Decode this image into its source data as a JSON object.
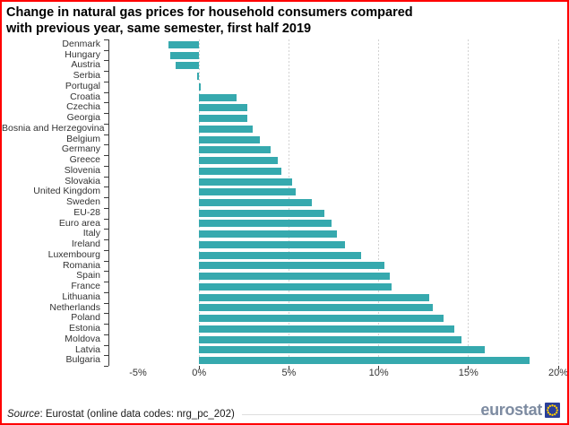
{
  "title_lines": [
    "Change in natural gas prices for household consumers compared",
    "with previous year, same semester, first half 2019"
  ],
  "chart_data": {
    "type": "bar",
    "orientation": "horizontal",
    "unit": "percent",
    "categories": [
      "Denmark",
      "Hungary",
      "Austria",
      "Serbia",
      "Portugal",
      "Croatia",
      "Czechia",
      "Georgia",
      "Bosnia and Herzegovina",
      "Belgium",
      "Germany",
      "Greece",
      "Slovenia",
      "Slovakia",
      "United Kingdom",
      "Sweden",
      "EU-28",
      "Euro area",
      "Italy",
      "Ireland",
      "Luxembourg",
      "Romania",
      "Spain",
      "France",
      "Lithuania",
      "Netherlands",
      "Poland",
      "Estonia",
      "Moldova",
      "Latvia",
      "Bulgaria"
    ],
    "values": [
      -1.7,
      -1.6,
      -1.3,
      -0.1,
      0.1,
      2.1,
      2.7,
      2.7,
      3.0,
      3.4,
      4.0,
      4.4,
      4.6,
      5.2,
      5.4,
      6.3,
      7.0,
      7.4,
      7.7,
      8.1,
      9.0,
      10.3,
      10.6,
      10.7,
      12.8,
      13.0,
      13.6,
      14.2,
      14.6,
      15.9,
      18.4
    ],
    "xlim": [
      -5,
      20
    ],
    "xticks": [
      {
        "label": "-5%",
        "value": -5
      },
      {
        "label": "0%",
        "value": 0
      },
      {
        "label": "5%",
        "value": 5
      },
      {
        "label": "10%",
        "value": 10
      },
      {
        "label": "15%",
        "value": 15
      },
      {
        "label": "20%",
        "value": 20
      }
    ],
    "grid_values": [
      0,
      5,
      10,
      15,
      20
    ],
    "grid_on": true,
    "legend_position": "none",
    "bar_color": "#36A9AE"
  },
  "footer": {
    "source_label": "Source",
    "source_text": ": Eurostat (online data codes: nrg_pc_202)",
    "logo_text": "eurostat"
  },
  "colors": {
    "bar": "#36A9AE",
    "frame_border": "#FF0000",
    "logo_text": "#7D8BA1",
    "logo_square": "#2B3F99",
    "logo_stars": "#FFCC00"
  }
}
